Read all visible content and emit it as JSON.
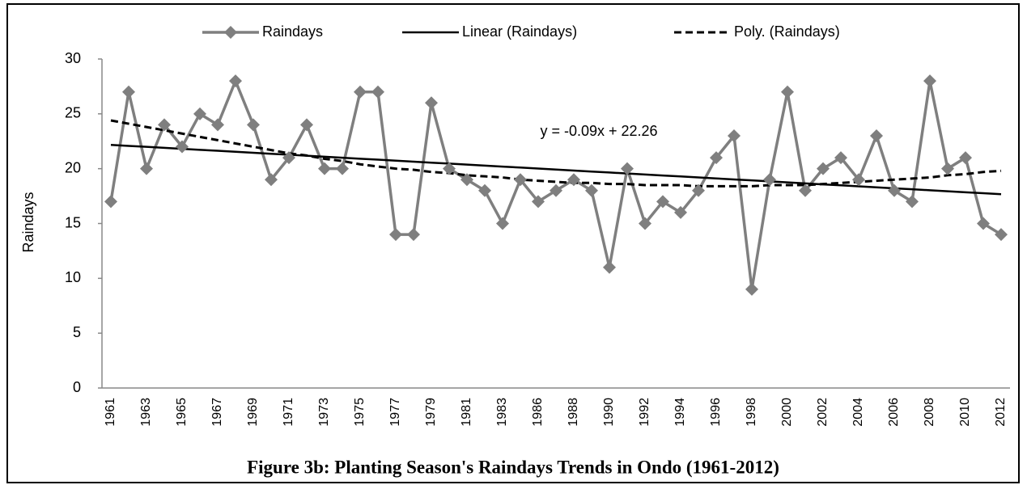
{
  "chart_data": {
    "type": "line",
    "title": "Figure 3b: Planting Season's Raindays Trends in Ondo (1961-2012)",
    "y_label": "Raindays",
    "annotation": "y = -0.09x + 22.26",
    "categories": [
      "1961",
      null,
      "1963",
      null,
      "1965",
      null,
      "1967",
      null,
      "1969",
      null,
      "1971",
      null,
      "1973",
      null,
      "1975",
      null,
      "1977",
      null,
      "1979",
      null,
      "1981",
      null,
      "1983",
      null,
      "1986",
      null,
      "1988",
      null,
      "1990",
      null,
      "1992",
      null,
      "1994",
      null,
      "1996",
      null,
      "1998",
      null,
      "2000",
      null,
      "2002",
      null,
      "2004",
      null,
      "2006",
      null,
      "2008",
      null,
      "2010",
      null,
      "2012"
    ],
    "series": [
      {
        "name": "Raindays",
        "color": "#7f7f7f",
        "style": "solid",
        "marker": "diamond",
        "values": [
          17,
          27,
          20,
          24,
          22,
          25,
          24,
          28,
          24,
          19,
          21,
          24,
          20,
          20,
          27,
          27,
          14,
          14,
          26,
          20,
          19,
          18,
          15,
          19,
          17,
          18,
          19,
          18,
          11,
          20,
          15,
          17,
          16,
          18,
          21,
          23,
          9,
          19,
          27,
          18,
          20,
          21,
          19,
          23,
          18,
          17,
          28,
          20,
          21,
          15,
          14
        ]
      },
      {
        "name": "Linear (Raindays)",
        "color": "#000000",
        "style": "solid",
        "values": [
          22.17,
          22.08,
          21.99,
          21.9,
          21.81,
          21.72,
          21.63,
          21.54,
          21.45,
          21.36,
          21.27,
          21.18,
          21.09,
          21.0,
          20.91,
          20.82,
          20.73,
          20.64,
          20.55,
          20.46,
          20.37,
          20.28,
          20.19,
          20.1,
          20.01,
          19.92,
          19.83,
          19.74,
          19.65,
          19.56,
          19.47,
          19.38,
          19.29,
          19.2,
          19.11,
          19.02,
          18.93,
          18.84,
          18.75,
          18.66,
          18.57,
          18.48,
          18.39,
          18.3,
          18.21,
          18.12,
          18.03,
          17.94,
          17.85,
          17.76,
          17.67
        ]
      },
      {
        "name": "Poly. (Raindays)",
        "color": "#000000",
        "style": "dashed",
        "values": [
          24.4,
          24.1,
          23.8,
          23.5,
          23.2,
          22.9,
          22.6,
          22.3,
          22.0,
          21.7,
          21.4,
          21.2,
          20.9,
          20.7,
          20.4,
          20.2,
          20.0,
          19.9,
          19.7,
          19.6,
          19.4,
          19.3,
          19.2,
          19.0,
          18.9,
          18.8,
          18.7,
          18.7,
          18.6,
          18.6,
          18.5,
          18.5,
          18.5,
          18.4,
          18.4,
          18.4,
          18.4,
          18.5,
          18.5,
          18.5,
          18.6,
          18.7,
          18.8,
          18.9,
          19.0,
          19.1,
          19.2,
          19.4,
          19.5,
          19.7,
          19.8
        ]
      }
    ],
    "ylim": [
      0,
      30
    ],
    "yticks": [
      0,
      5,
      10,
      15,
      20,
      25,
      30
    ],
    "grid": false,
    "legend": "top"
  }
}
